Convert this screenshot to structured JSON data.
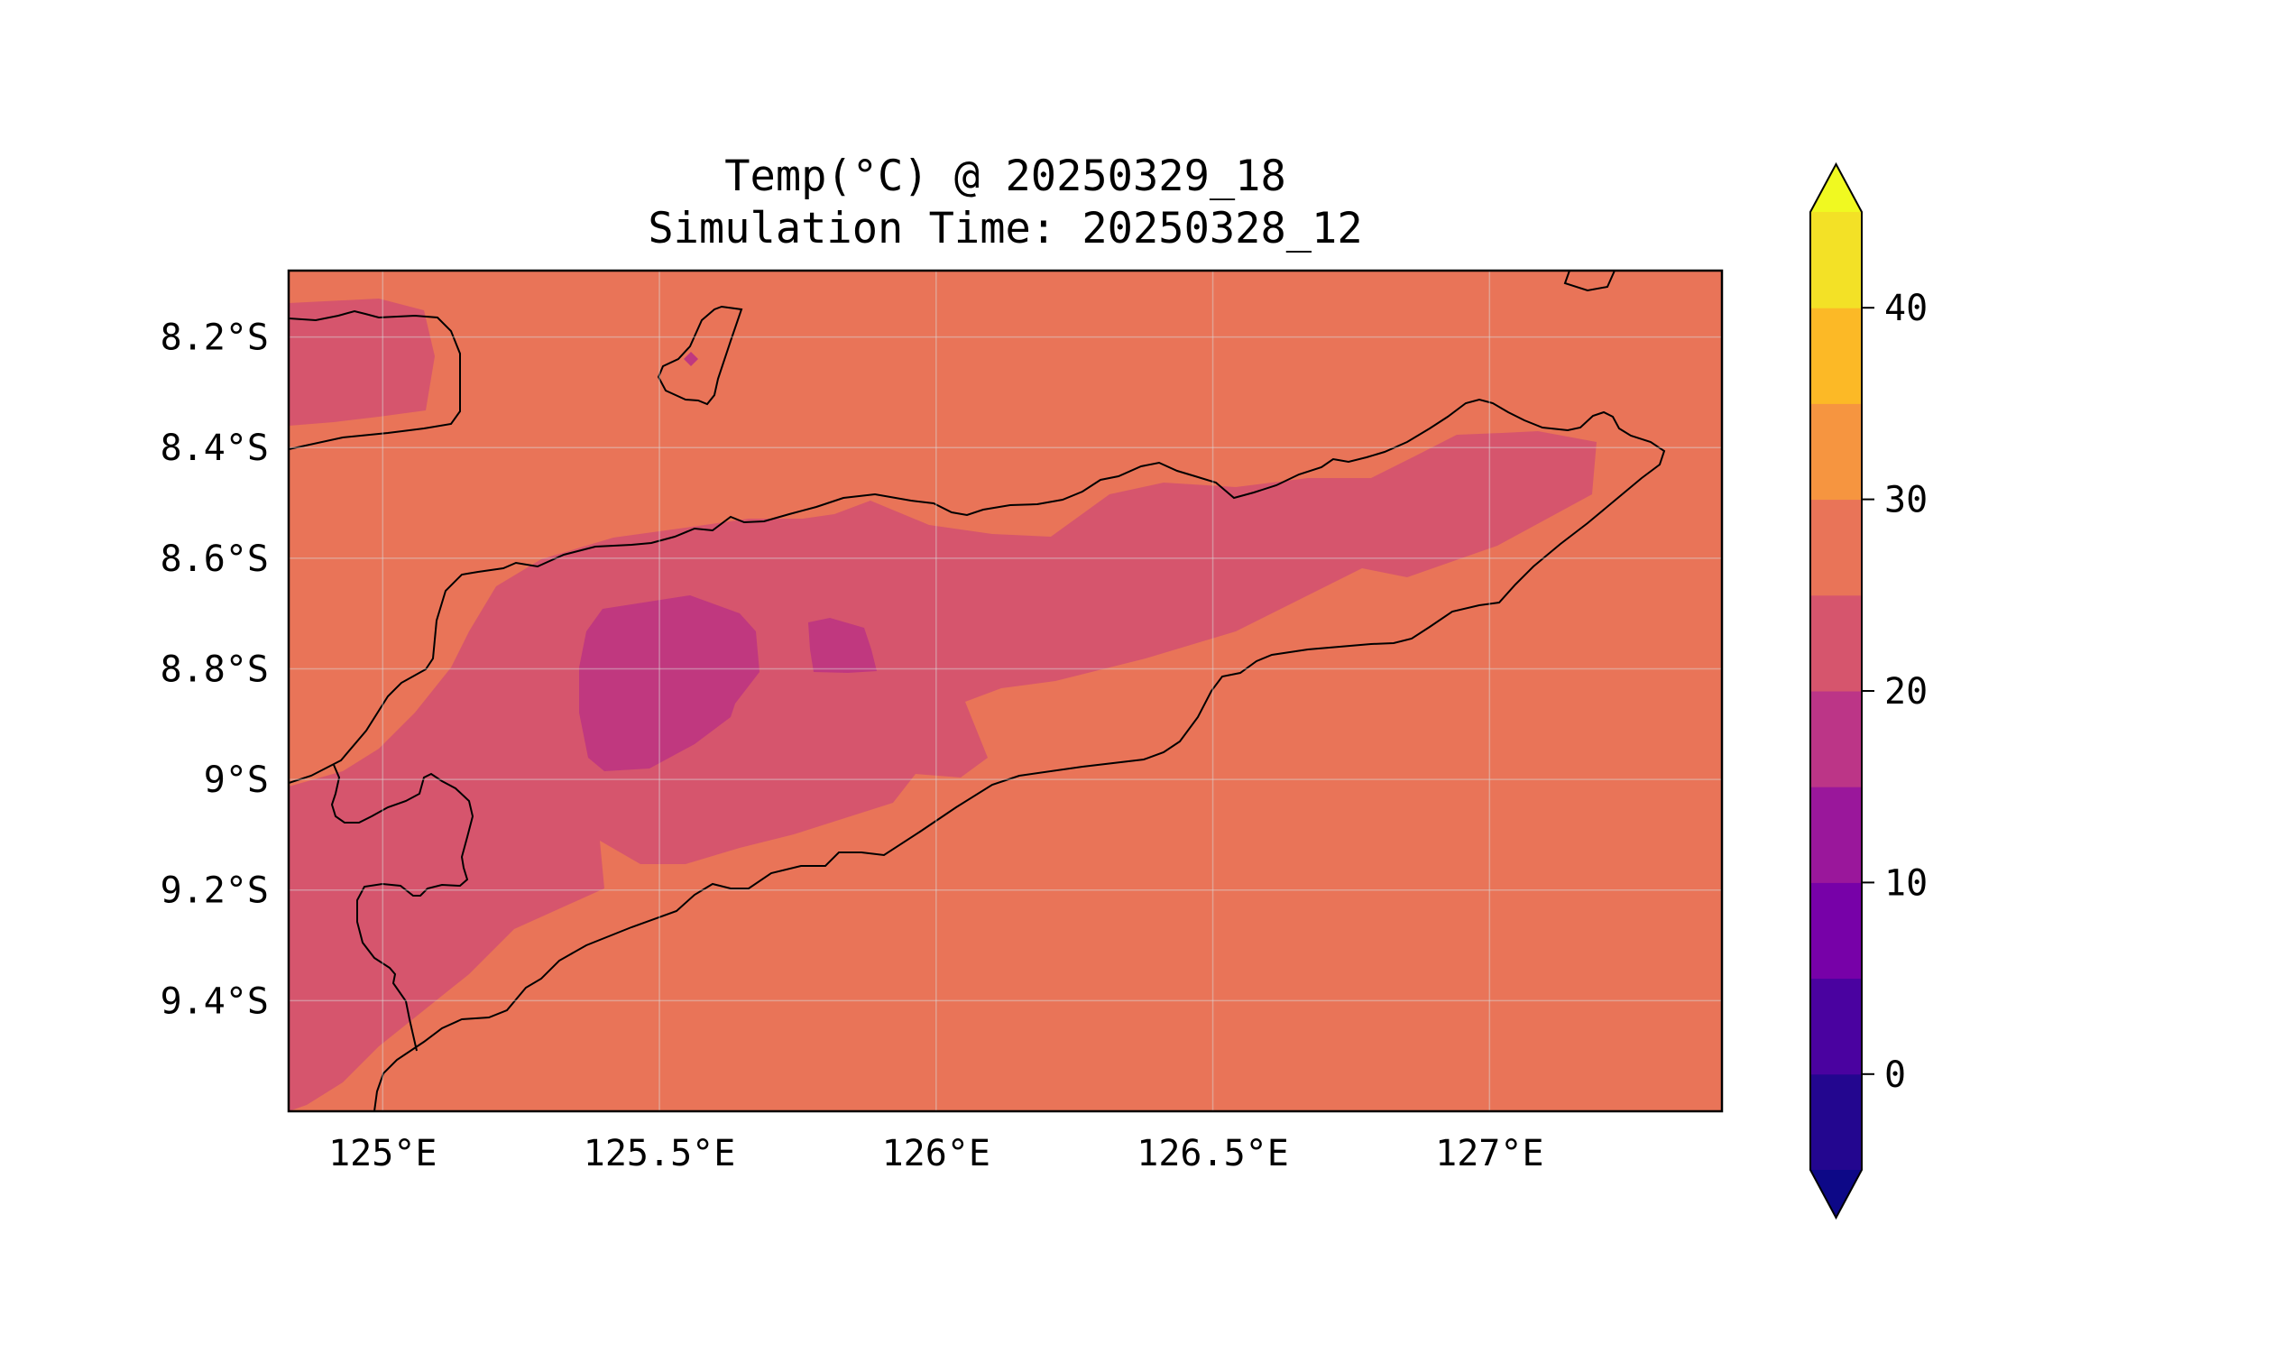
{
  "map": {
    "title_line1": "Temp(°C) @ 20250329_18",
    "title_line2": "Simulation Time: 20250328_12",
    "extent": {
      "lon_min": 124.83,
      "lon_max": 127.42,
      "lat_min": -9.6,
      "lat_max": -8.08
    },
    "lon_ticks": [
      {
        "value": 125.0,
        "label": "125°E"
      },
      {
        "value": 125.5,
        "label": "125.5°E"
      },
      {
        "value": 126.0,
        "label": "126°E"
      },
      {
        "value": 126.5,
        "label": "126.5°E"
      },
      {
        "value": 127.0,
        "label": "127°E"
      }
    ],
    "lat_ticks": [
      {
        "value": -8.2,
        "label": "8.2°S"
      },
      {
        "value": -8.4,
        "label": "8.4°S"
      },
      {
        "value": -8.6,
        "label": "8.6°S"
      },
      {
        "value": -8.8,
        "label": "8.8°S"
      },
      {
        "value": -9.0,
        "label": "9°S"
      },
      {
        "value": -9.2,
        "label": "9.2°S"
      },
      {
        "value": -9.4,
        "label": "9.4°S"
      }
    ],
    "gridlines": true,
    "background_level_color": "#e97458",
    "land_colors": {
      "25_to_20": "#d6556d",
      "20_to_15": "#c0387f"
    }
  },
  "colorbar": {
    "extend": "both",
    "levels": [
      -5,
      0,
      5,
      10,
      15,
      20,
      25,
      30,
      35,
      40,
      45
    ],
    "colors": [
      "#23068f",
      "#4a02a0",
      "#7701a8",
      "#9a179b",
      "#bc3587",
      "#d6556d",
      "#e97458",
      "#f69540",
      "#fcb926",
      "#f3e126"
    ],
    "under_color": "#0d0887",
    "over_color": "#f0f921",
    "ticks": [
      {
        "value": 0,
        "label": "0"
      },
      {
        "value": 10,
        "label": "10"
      },
      {
        "value": 20,
        "label": "20"
      },
      {
        "value": 30,
        "label": "30"
      },
      {
        "value": 40,
        "label": "40"
      }
    ]
  }
}
